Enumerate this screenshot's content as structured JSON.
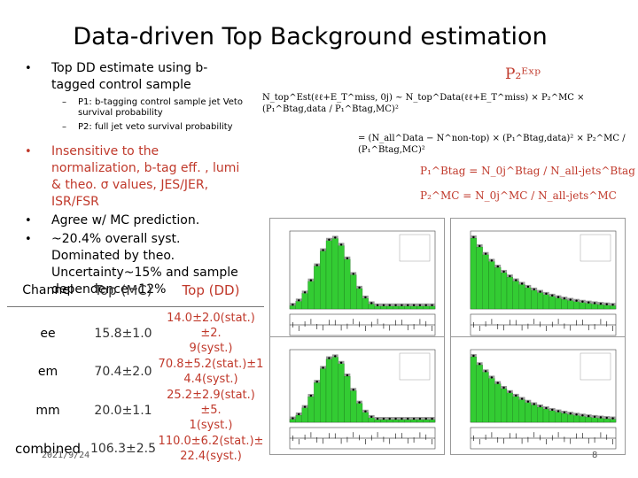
{
  "title": "Data-driven Top Background estimation",
  "bullets": [
    {
      "text": "Top DD estimate using b-tagged control sample",
      "red": false,
      "subs": [
        "P1: b-tagging control sample jet Veto survival probability",
        "P2: full jet veto survival probability"
      ]
    },
    {
      "text": "Insensitive to the normalization, b-tag eff. , lumi & theo. σ values, JES/JER, ISR/FSR",
      "red": true
    },
    {
      "text": "Agree w/ MC prediction.",
      "red": false
    },
    {
      "text": "~20.4% overall syst. Dominated by theo. Uncertainty~15% and sample dependence~12%",
      "red": false
    }
  ],
  "formulas": {
    "p2exp": "P₂ᴱˣᵖ",
    "line1": "N_top^Est(ℓℓ+E_T^miss, 0j) ~ N_top^Data(ℓℓ+E_T^miss) × P₂^MC × (P₁^Btag,data / P₁^Btag,MC)²",
    "line2": "= (N_all^Data − N^non-top) × (P₁^Btag,data)² × P₂^MC / (P₁^Btag,MC)²",
    "line3": "P₁^Btag = N_0j^Btag / N_all-jets^Btag",
    "line4": "P₂^MC = N_0j^MC / N_all-jets^MC"
  },
  "table": {
    "headers": [
      "Channel",
      "Top (MC)",
      "Top (DD)"
    ],
    "rows": [
      {
        "channel": "ee",
        "mc": "15.8±1.0",
        "dd1": "14.0±2.0(stat.)±2.",
        "dd2": "9(syst.)"
      },
      {
        "channel": "em",
        "mc": "70.4±2.0",
        "dd1": "70.8±5.2(stat.)±1",
        "dd2": "4.4(syst.)"
      },
      {
        "channel": "mm",
        "mc": "20.0±1.1",
        "dd1": "25.2±2.9(stat.)±5.",
        "dd2": "1(syst.)"
      },
      {
        "channel": "combined",
        "mc": "106.3±2.5",
        "dd1": "110.0±6.2(stat.)±",
        "dd2": "22.4(syst.)"
      }
    ]
  },
  "footer": {
    "date": "2021/9/24",
    "page": "8"
  },
  "colors": {
    "accent": "#c0392b",
    "hist_fill": "#33cc33"
  }
}
